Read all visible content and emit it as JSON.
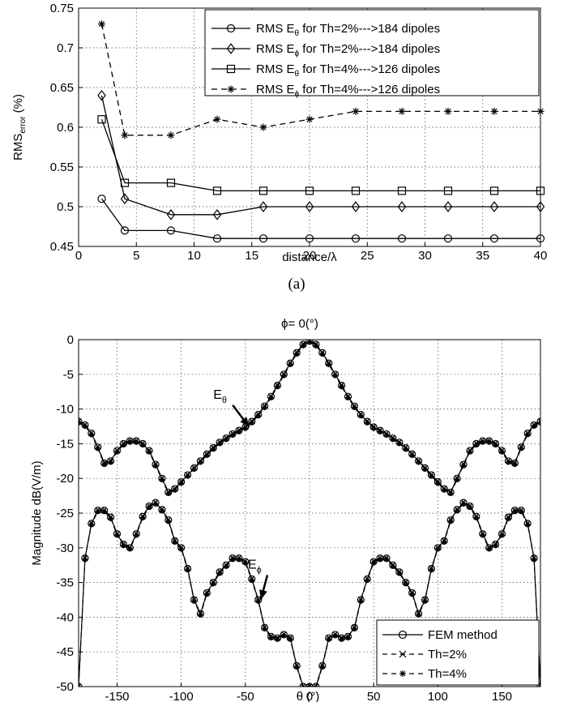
{
  "chart_data": [
    {
      "type": "line",
      "caption": "(a)",
      "xlabel": "distance/λ",
      "ylabel": "RMS",
      "ylabel_sub": "error",
      "ylabel_suffix": " (%)",
      "xlim": [
        0,
        40
      ],
      "ylim": [
        0.45,
        0.75
      ],
      "xticks": [
        0,
        5,
        10,
        15,
        20,
        25,
        30,
        35,
        40
      ],
      "yticks": [
        0.45,
        0.5,
        0.55,
        0.6,
        0.65,
        0.7,
        0.75
      ],
      "grid": true,
      "legend_position": "top-right",
      "x": [
        2,
        4,
        8,
        12,
        16,
        20,
        24,
        28,
        32,
        36,
        40
      ],
      "series": [
        {
          "legend_pre": "RMS E",
          "legend_sub": "θ",
          "legend_post": " for Th=2%--->184 dipoles",
          "marker": "circle",
          "dash": "solid",
          "values": [
            0.51,
            0.47,
            0.47,
            0.46,
            0.46,
            0.46,
            0.46,
            0.46,
            0.46,
            0.46,
            0.46
          ]
        },
        {
          "legend_pre": "RMS E",
          "legend_sub": "ϕ",
          "legend_post": " for Th=2%--->184 dipoles",
          "marker": "diamond",
          "dash": "solid",
          "values": [
            0.64,
            0.51,
            0.49,
            0.49,
            0.5,
            0.5,
            0.5,
            0.5,
            0.5,
            0.5,
            0.5
          ]
        },
        {
          "legend_pre": "RMS E",
          "legend_sub": "θ",
          "legend_post": " for Th=4%--->126 dipoles",
          "marker": "square",
          "dash": "solid",
          "values": [
            0.61,
            0.53,
            0.53,
            0.52,
            0.52,
            0.52,
            0.52,
            0.52,
            0.52,
            0.52,
            0.52
          ]
        },
        {
          "legend_pre": "RMS E",
          "legend_sub": "ϕ",
          "legend_post": " for Th=4%--->126 dipoles",
          "marker": "asterisk",
          "dash": "dashed",
          "values": [
            0.73,
            0.59,
            0.59,
            0.61,
            0.6,
            0.61,
            0.62,
            0.62,
            0.62,
            0.62,
            0.62
          ]
        }
      ]
    },
    {
      "type": "line",
      "caption": "(b)",
      "title": "ϕ= 0(°)",
      "xlabel": "θ (°)",
      "ylabel": "Magnitude dB(V/m)",
      "xlim": [
        -180,
        180
      ],
      "ylim": [
        -50,
        0
      ],
      "xticks": [
        -150,
        -100,
        -50,
        0,
        50,
        100,
        150
      ],
      "yticks": [
        0,
        -5,
        -10,
        -15,
        -20,
        -25,
        -30,
        -35,
        -40,
        -45,
        -50
      ],
      "grid": true,
      "legend_position": "bottom-right",
      "annotations": [
        {
          "label": "E",
          "sub": "θ",
          "points_to": [
            -47,
            -12.6
          ]
        },
        {
          "label": "E",
          "sub": "ϕ",
          "points_to": [
            -38,
            -37.5
          ]
        }
      ],
      "curves": {
        "e_theta": {
          "label": "E",
          "sub": "θ",
          "x": [
            -180,
            -175,
            -170,
            -165,
            -160,
            -155,
            -150,
            -145,
            -140,
            -135,
            -130,
            -125,
            -120,
            -115,
            -110,
            -105,
            -100,
            -95,
            -90,
            -85,
            -80,
            -75,
            -70,
            -65,
            -60,
            -55,
            -50,
            -45,
            -40,
            -35,
            -30,
            -25,
            -20,
            -15,
            -10,
            -5,
            0,
            5,
            10,
            15,
            20,
            25,
            30,
            35,
            40,
            45,
            50,
            55,
            60,
            65,
            70,
            75,
            80,
            85,
            90,
            95,
            100,
            105,
            110,
            115,
            120,
            125,
            130,
            135,
            140,
            145,
            150,
            155,
            160,
            165,
            170,
            175,
            180
          ],
          "y": [
            -11.8,
            -12.3,
            -13.5,
            -15.5,
            -17.8,
            -17.5,
            -16.0,
            -15.0,
            -14.6,
            -14.6,
            -15.0,
            -16.0,
            -18.0,
            -20.0,
            -22.0,
            -21.5,
            -20.5,
            -19.5,
            -18.5,
            -17.5,
            -16.5,
            -15.6,
            -14.8,
            -14.2,
            -13.6,
            -13.1,
            -12.6,
            -11.8,
            -10.8,
            -9.6,
            -8.2,
            -6.6,
            -5.0,
            -3.4,
            -1.9,
            -0.7,
            -0.2,
            -0.7,
            -1.9,
            -3.4,
            -5.0,
            -6.6,
            -8.2,
            -9.6,
            -10.8,
            -11.8,
            -12.6,
            -13.1,
            -13.6,
            -14.2,
            -14.8,
            -15.6,
            -16.5,
            -17.5,
            -18.5,
            -19.5,
            -20.5,
            -21.5,
            -22.0,
            -20.0,
            -18.0,
            -16.0,
            -15.0,
            -14.6,
            -14.6,
            -15.0,
            -16.0,
            -17.5,
            -17.8,
            -15.5,
            -13.5,
            -12.3,
            -11.8
          ]
        },
        "e_phi": {
          "label": "E",
          "sub": "ϕ",
          "x": [
            -180,
            -175,
            -170,
            -165,
            -160,
            -155,
            -150,
            -145,
            -140,
            -135,
            -130,
            -125,
            -120,
            -115,
            -110,
            -105,
            -100,
            -95,
            -90,
            -85,
            -80,
            -75,
            -70,
            -65,
            -60,
            -55,
            -50,
            -45,
            -40,
            -35,
            -30,
            -25,
            -20,
            -15,
            -10,
            -5,
            0,
            5,
            10,
            15,
            20,
            25,
            30,
            35,
            40,
            45,
            50,
            55,
            60,
            65,
            70,
            75,
            80,
            85,
            90,
            95,
            100,
            105,
            110,
            115,
            120,
            125,
            130,
            135,
            140,
            145,
            150,
            155,
            160,
            165,
            170,
            175,
            180
          ],
          "y": [
            -50,
            -31.5,
            -26.5,
            -24.6,
            -24.6,
            -25.6,
            -28.0,
            -29.5,
            -30.0,
            -28.0,
            -25.5,
            -24.0,
            -23.5,
            -24.5,
            -26.0,
            -29.0,
            -30.0,
            -33.0,
            -37.5,
            -39.5,
            -36.5,
            -35.0,
            -33.5,
            -32.5,
            -31.5,
            -31.5,
            -32.0,
            -34.5,
            -37.5,
            -41.5,
            -42.8,
            -43.0,
            -42.5,
            -43.0,
            -47.0,
            -50.0,
            -50.0,
            -50.0,
            -47.0,
            -43.0,
            -42.5,
            -43.0,
            -42.8,
            -41.5,
            -37.5,
            -34.5,
            -32.0,
            -31.5,
            -31.5,
            -32.5,
            -33.5,
            -35.0,
            -36.5,
            -39.5,
            -37.5,
            -33.0,
            -30.0,
            -29.0,
            -26.0,
            -24.5,
            -23.5,
            -24.0,
            -25.5,
            -28.0,
            -30.0,
            -29.5,
            -28.0,
            -25.6,
            -24.6,
            -24.6,
            -26.5,
            -31.5,
            -50.0
          ]
        }
      },
      "series": [
        {
          "name": "FEM method",
          "marker": "circle",
          "dash": "solid"
        },
        {
          "name": "Th=2%",
          "marker": "x",
          "dash": "dashed"
        },
        {
          "name": "Th=4%",
          "marker": "asterisk",
          "dash": "dashed"
        }
      ]
    }
  ]
}
